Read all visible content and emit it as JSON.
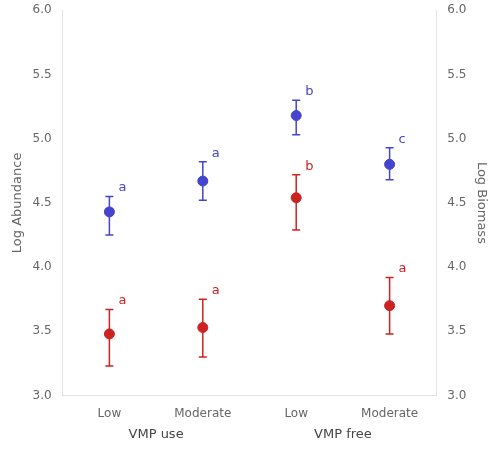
{
  "chart_data": {
    "type": "scatter",
    "categories": [
      "Low",
      "Moderate",
      "Low",
      "Moderate"
    ],
    "x_groups": [
      {
        "label": "VMP use",
        "size": 2
      },
      {
        "label": "VMP free",
        "size": 2
      }
    ],
    "series": [
      {
        "color": "#4444CC",
        "marker": "circle",
        "values": [
          4.43,
          4.67,
          5.18,
          4.8
        ],
        "error_lower": [
          0.18,
          0.15,
          0.15,
          0.12
        ],
        "error_upper": [
          0.12,
          0.15,
          0.12,
          0.13
        ],
        "annotations": [
          "a",
          "a",
          "b",
          "c"
        ]
      },
      {
        "color": "#CC2222",
        "marker": "circle",
        "axis": "y2",
        "values": [
          3.48,
          3.53,
          4.54,
          3.7
        ],
        "error_lower": [
          0.25,
          0.23,
          0.25,
          0.22
        ],
        "error_upper": [
          0.19,
          0.22,
          0.18,
          0.22
        ],
        "annotations": [
          "a",
          "a",
          "b",
          "a"
        ]
      }
    ],
    "ylabel": "Log Abundance",
    "y2label": "Log Biomass",
    "ylim": [
      3.0,
      6.0
    ],
    "yticks": [
      {
        "value": 3,
        "label": "3.0"
      },
      3.5,
      {
        "value": 4,
        "label": "4.0"
      },
      4.5,
      {
        "value": 5,
        "label": "5.0"
      },
      5.5,
      {
        "value": 6,
        "label": "6.0"
      }
    ],
    "y2lim": [
      3.0,
      6.0
    ],
    "y2ticks": [
      {
        "value": 3,
        "label": "3.0"
      },
      3.5,
      {
        "value": 4,
        "label": "4.0"
      },
      4.5,
      {
        "value": 5,
        "label": "5.0"
      },
      5.5,
      {
        "value": 6,
        "label": "6.0"
      }
    ],
    "grid": false
  }
}
